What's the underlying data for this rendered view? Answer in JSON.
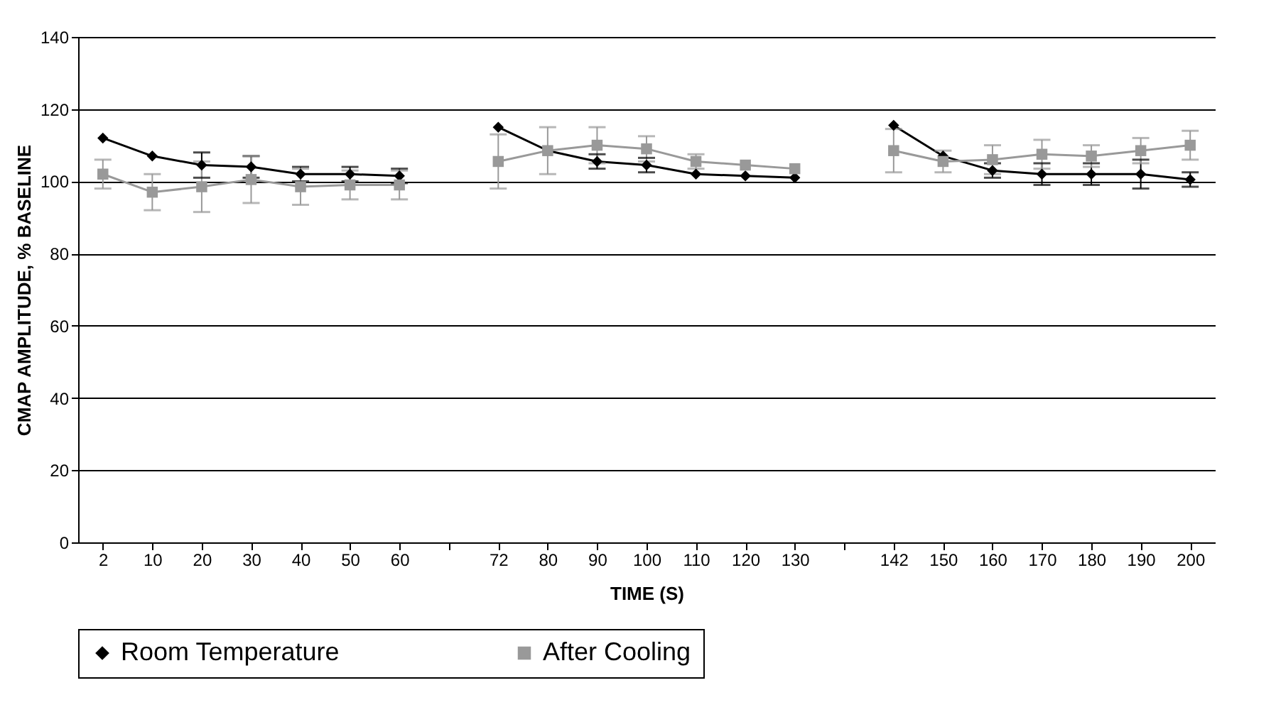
{
  "chart_data": {
    "type": "line",
    "xlabel": "TIME (S)",
    "ylabel": "CMAP AMPLITUDE, % BASELINE",
    "categories": [
      "2",
      "10",
      "20",
      "30",
      "40",
      "50",
      "60",
      null,
      "72",
      "80",
      "90",
      "100",
      "110",
      "120",
      "130",
      null,
      "142",
      "150",
      "160",
      "170",
      "180",
      "190",
      "200"
    ],
    "series": [
      {
        "name": "Room Temperature",
        "color": "#000000",
        "marker": "diamond",
        "values": [
          112,
          107,
          104.5,
          104,
          102,
          102,
          101.5,
          null,
          115,
          108.5,
          105.5,
          104.5,
          102,
          101.5,
          101,
          null,
          115.5,
          107,
          103,
          102,
          102,
          102,
          100.5
        ],
        "errors": [
          null,
          null,
          3.5,
          3,
          2,
          2,
          2,
          null,
          null,
          null,
          2,
          2,
          null,
          null,
          null,
          null,
          null,
          null,
          2,
          3,
          3,
          4,
          2
        ]
      },
      {
        "name": "After Cooling",
        "color": "#999999",
        "marker": "square",
        "values": [
          102,
          97,
          98.5,
          100.5,
          98.5,
          99,
          99,
          null,
          105.5,
          108.5,
          110,
          109,
          105.5,
          104.5,
          103.5,
          null,
          108.5,
          105.5,
          106,
          107.5,
          107,
          108.5,
          110
        ],
        "errors": [
          4,
          5,
          7,
          6.5,
          5,
          4,
          4,
          null,
          7.5,
          6.5,
          5,
          3.5,
          2,
          null,
          null,
          null,
          6,
          3,
          4,
          4,
          3,
          3.5,
          4
        ]
      }
    ],
    "ylim": [
      0,
      140
    ],
    "yticks": [
      0,
      20,
      40,
      60,
      80,
      100,
      120,
      140
    ],
    "grid": "y",
    "legend": "bottom",
    "line_style": "solid"
  }
}
